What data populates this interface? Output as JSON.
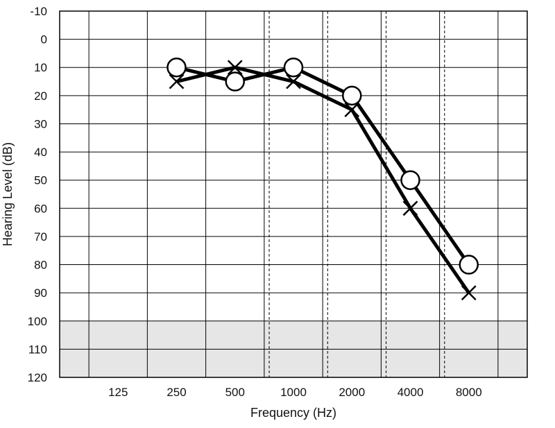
{
  "chart_data": {
    "type": "line",
    "title": "",
    "xlabel": "Frequency (Hz)",
    "ylabel": "Hearing Level (dB)",
    "x_scale": "log2",
    "y_inverted": true,
    "grid": true,
    "ylim": [
      -10,
      120
    ],
    "yticks": [
      "-10",
      "0",
      "10",
      "20",
      "30",
      "40",
      "50",
      "60",
      "70",
      "80",
      "90",
      "100",
      "110",
      "120"
    ],
    "categories": [
      "125",
      "250",
      "500",
      "1000",
      "2000",
      "4000",
      "8000"
    ],
    "x_values": [
      125,
      250,
      500,
      1000,
      2000,
      4000,
      8000
    ],
    "shaded_band": [
      100,
      120
    ],
    "series": [
      {
        "marker": "circle",
        "color": "#000000",
        "values": [
          null,
          10,
          15,
          10,
          20,
          50,
          80
        ]
      },
      {
        "marker": "cross",
        "color": "#000000",
        "values": [
          null,
          15,
          10,
          15,
          25,
          60,
          90
        ]
      }
    ]
  }
}
